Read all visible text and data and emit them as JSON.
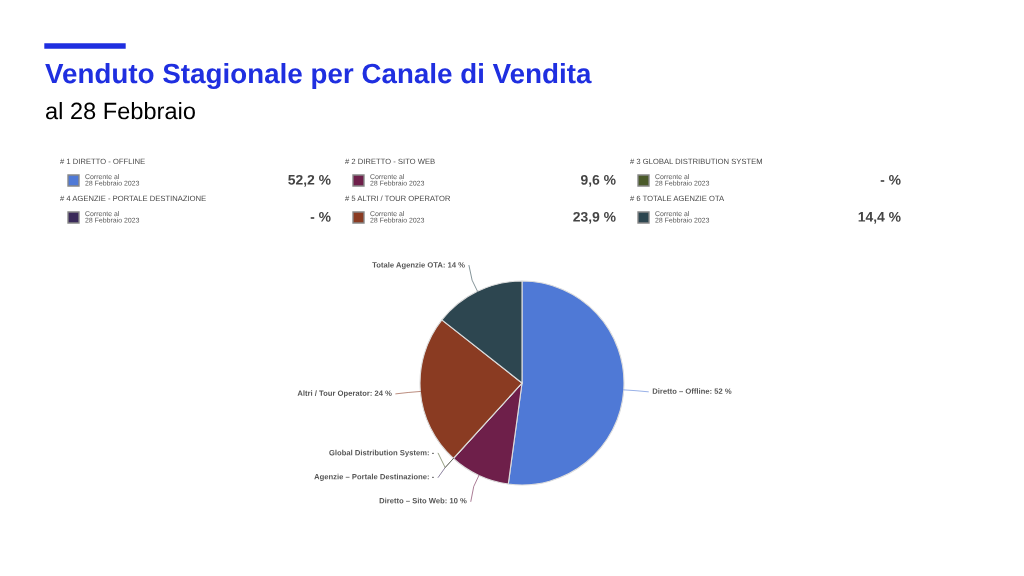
{
  "chart_data": [
    {
      "type": "other",
      "title": "Venduto Stagionale per Canale di Vendita",
      "subtitle": "al 28 Febbraio",
      "categories": [
        "# 1 DIRETTO - OFFLINE",
        "# 2 DIRETTO - SITO WEB",
        "# 3 GLOBAL DISTRIBUTION SYSTEM",
        "# 4 AGENZIE - PORTALE DESTINAZIONE",
        "# 5 ALTRI / TOUR OPERATOR",
        "# 6 TOTALE AGENZIE OTA"
      ],
      "colors": [
        "#4f79d6",
        "#6e1f4a",
        "#4a5a2a",
        "#3a2a5a",
        "#8a3b22",
        "#2d4650"
      ],
      "value_labels": [
        "52,2 %",
        "9,6 %",
        "- %",
        "- %",
        "23,9 %",
        "14,4 %"
      ],
      "annotations": [
        "Corrente al\n28 Febbraio 2023",
        "Corrente al\n28 Febbraio 2023",
        "Corrente al\n28 Febbraio 2023",
        "Corrente al\n28 Febbraio 2023",
        "Corrente al\n28 Febbraio 2023",
        "Corrente al\n28 Febbraio 2023"
      ]
    },
    {
      "type": "pie",
      "categories": [
        "Diretto – Offline: 52 %",
        "Diretto – Sito Web: 10 %",
        "Agenzie – Portale Destinazione: -",
        "Global Distribution System: -",
        "Altri / Tour Operator: 24 %",
        "Totale Agenzie OTA: 14 %"
      ],
      "values": [
        52.2,
        9.6,
        0,
        0,
        23.9,
        14.4
      ],
      "colors": [
        "#4f79d6",
        "#6e1f4a",
        "#3a2a5a",
        "#4a5a2a",
        "#8a3b22",
        "#2d4650"
      ]
    }
  ]
}
